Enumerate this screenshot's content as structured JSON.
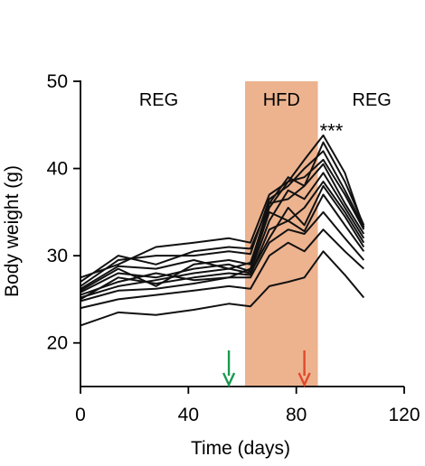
{
  "chart_data": {
    "type": "line",
    "xlabel": "Time (days)",
    "ylabel": "Body weight (g)",
    "xlim": [
      0,
      120
    ],
    "ylim": [
      15,
      50
    ],
    "xticks": [
      0,
      40,
      80,
      120
    ],
    "yticks": [
      20,
      30,
      40,
      50
    ],
    "grid": false,
    "shaded_region": {
      "x_start": 61,
      "x_end": 88,
      "color": "#EDB38F",
      "label": "HFD"
    },
    "region_labels": [
      {
        "text": "REG",
        "x": 29
      },
      {
        "text": "HFD",
        "x": 74.5
      },
      {
        "text": "REG",
        "x": 108
      }
    ],
    "annotation": {
      "text": "***",
      "x": 93,
      "y": 45
    },
    "arrows": [
      {
        "x": 55,
        "color": "#1A9A50"
      },
      {
        "x": 83,
        "color": "#E0492A"
      }
    ],
    "x": [
      0,
      14,
      28,
      42,
      55,
      63,
      70,
      77,
      83,
      90,
      98,
      105
    ],
    "series": [
      {
        "values": [
          22.0,
          23.5,
          23.2,
          23.8,
          24.5,
          24.2,
          26.5,
          27.0,
          27.5,
          30.5,
          27.8,
          25.2
        ]
      },
      {
        "values": [
          24.0,
          25.0,
          25.5,
          26.0,
          26.5,
          26.2,
          30.0,
          31.5,
          30.5,
          33.0,
          30.5,
          28.5
        ]
      },
      {
        "values": [
          24.8,
          26.0,
          26.2,
          26.8,
          27.5,
          27.5,
          31.5,
          33.0,
          32.5,
          35.0,
          32.0,
          29.5
        ]
      },
      {
        "values": [
          25.0,
          27.5,
          26.8,
          27.5,
          28.0,
          27.8,
          33.0,
          34.0,
          32.8,
          37.0,
          33.5,
          30.5
        ]
      },
      {
        "values": [
          25.2,
          26.5,
          27.2,
          28.0,
          28.5,
          28.0,
          32.0,
          35.5,
          33.5,
          38.0,
          34.5,
          31.0
        ]
      },
      {
        "values": [
          25.5,
          27.0,
          28.0,
          27.2,
          27.5,
          28.5,
          35.0,
          34.0,
          35.5,
          38.5,
          35.0,
          31.5
        ]
      },
      {
        "values": [
          25.8,
          28.0,
          27.5,
          28.5,
          29.0,
          28.2,
          34.0,
          37.5,
          36.5,
          39.5,
          35.5,
          32.0
        ]
      },
      {
        "values": [
          26.0,
          28.5,
          26.5,
          29.0,
          29.5,
          29.0,
          36.0,
          36.5,
          38.0,
          40.5,
          36.0,
          32.5
        ]
      },
      {
        "values": [
          26.2,
          28.8,
          28.5,
          29.5,
          28.5,
          29.2,
          35.5,
          38.5,
          39.0,
          41.0,
          37.0,
          33.0
        ]
      },
      {
        "values": [
          26.5,
          29.5,
          30.0,
          30.0,
          30.5,
          30.2,
          36.5,
          38.0,
          40.0,
          42.0,
          37.5,
          33.3
        ]
      },
      {
        "values": [
          27.0,
          30.0,
          29.0,
          30.5,
          31.0,
          30.8,
          36.0,
          39.0,
          38.0,
          43.0,
          38.5,
          33.5
        ]
      },
      {
        "values": [
          27.5,
          29.0,
          31.0,
          31.5,
          32.0,
          31.5,
          37.0,
          38.5,
          41.0,
          43.8,
          39.5,
          33.2
        ]
      }
    ]
  }
}
